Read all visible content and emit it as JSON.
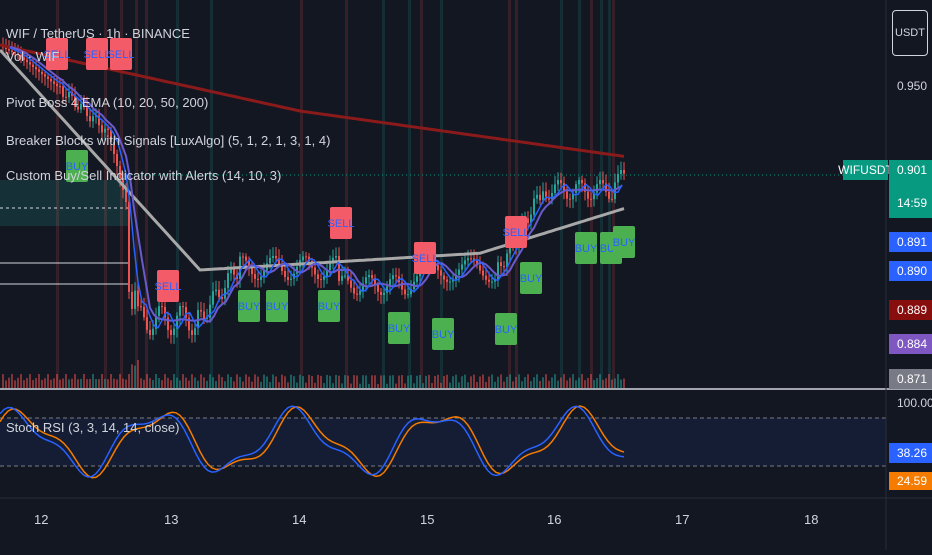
{
  "symbol_line": "WIF / TetherUS · 1h · BINANCE",
  "indicators": [
    "Vol · WIF",
    "Pivot Boss 4 EMA (10, 20, 50, 200)",
    "Breaker Blocks with Signals [LuxAlgo] (5, 1, 2, 1, 3, 1, 4)",
    "Custom Buy/Sell Indicator with Alerts (14, 10, 3)"
  ],
  "currency_button": "USDT",
  "symbol_tag": "WIFUSDT",
  "price_axis": {
    "label_0950": "0.950",
    "last_price": "0.901",
    "countdown": "14:59",
    "tags": [
      {
        "value": "0.891",
        "color": "#2962ff"
      },
      {
        "value": "0.890",
        "color": "#2962ff"
      },
      {
        "value": "0.889",
        "color": "#880e0e"
      },
      {
        "value": "0.884",
        "color": "#7e57c2"
      },
      {
        "value": "0.871",
        "color": "#787b86"
      }
    ]
  },
  "oscillator": {
    "title": "Stoch RSI (3, 3, 14, 14, close)",
    "upper_label": "100.00",
    "k_value": "38.26",
    "d_value": "24.59",
    "k_color": "#2962ff",
    "d_color": "#f57c00"
  },
  "time_axis": [
    "12",
    "13",
    "14",
    "15",
    "16",
    "17",
    "18"
  ],
  "signals": {
    "sell_label": "SELL",
    "buy_label": "BUY",
    "sell_color": "#f45b69",
    "buy_color": "#4caf50"
  },
  "colors": {
    "background": "#131722",
    "up_candle": "#26a69a",
    "down_candle": "#ef5350",
    "ema200": "#8b1a1a",
    "ema50": "#a8a8a8",
    "ema20": "#6a5acd",
    "ema10": "#2962ff"
  }
}
